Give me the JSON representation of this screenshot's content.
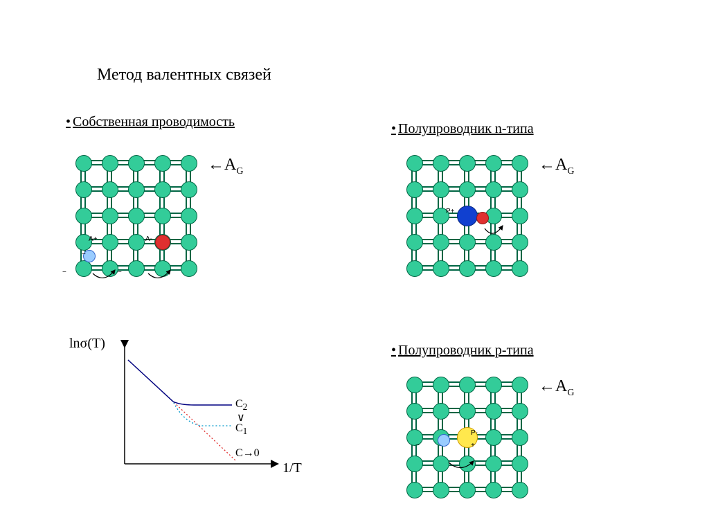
{
  "title": "Метод валентных связей",
  "sections": {
    "intrinsic": "Собственная проводимость",
    "ntype": "Полупроводник n-типа",
    "ptype": "Полупроводник p-типа"
  },
  "labels": {
    "ag_prefix": "←",
    "ag_a": "A",
    "ag_g": "G",
    "chart_y": "lnσ(T)",
    "chart_x": "1/T",
    "c2": "C",
    "c2s": "2",
    "c1": "C",
    "c1s": "1",
    "c1_sym": "∨",
    "c0": "C→0",
    "ann_Aplus": "A+",
    "ann_Aminus": "A-",
    "ann_Pplus": "P+",
    "ann_Pminus": "P-",
    "minus": "−",
    "plus": "+"
  },
  "lattice": {
    "rows": 5,
    "cols": 5,
    "spacing": 38,
    "atom_r": 11,
    "atom_fill": "#33cc99",
    "atom_stroke": "#006644",
    "bond_color": "#006644"
  },
  "special_atoms": {
    "hole_blue": {
      "fill": "#99ccff",
      "stroke": "#3366cc"
    },
    "electron_red": {
      "fill": "#e03030",
      "stroke": "#901818"
    },
    "donor_blue": {
      "fill": "#1040d0",
      "stroke": "#0a2880",
      "r": 14
    },
    "acceptor_yellow": {
      "fill": "#ffe84d",
      "stroke": "#cc9900",
      "r": 14
    }
  },
  "chart": {
    "axis_color": "#000000",
    "c2_color": "#000080",
    "c1_color": "#0099cc",
    "c0_color": "#e03030"
  }
}
